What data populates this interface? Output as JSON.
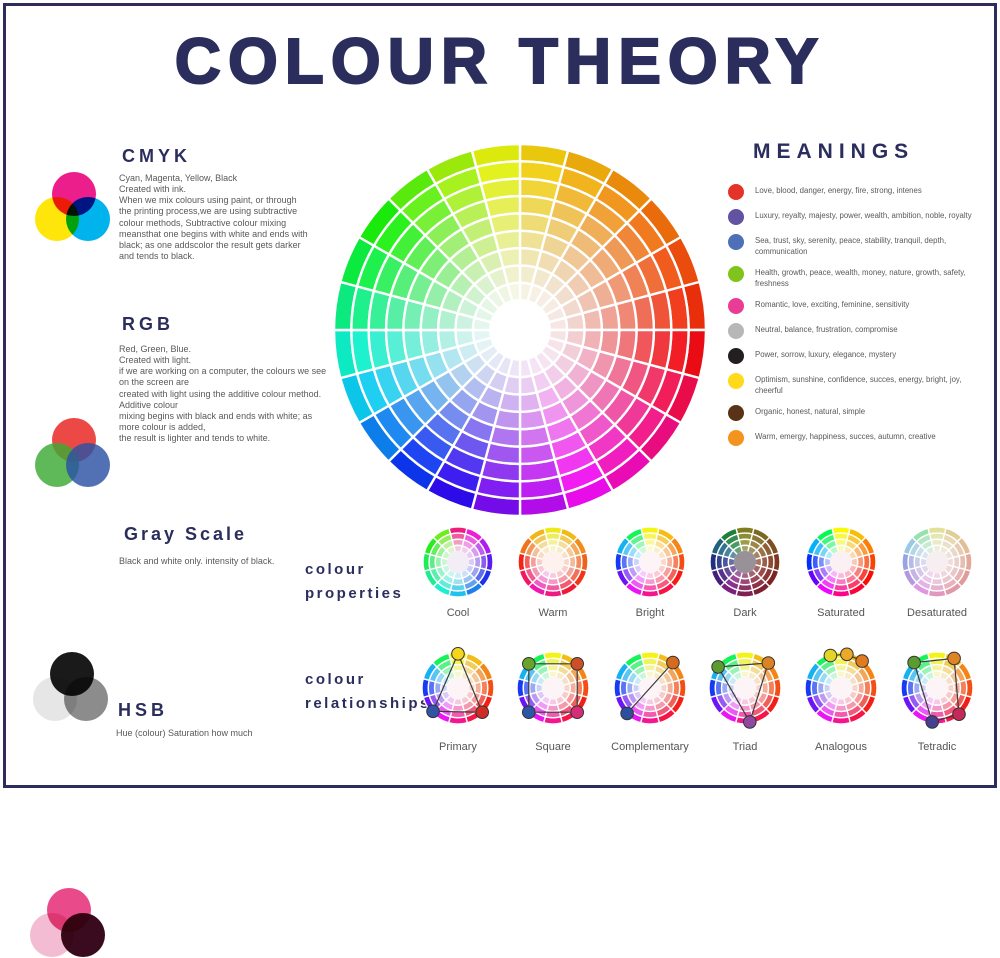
{
  "page": {
    "title": "COLOUR THEORY",
    "accent": "#2b2e5d",
    "background": "#ffffff"
  },
  "sections": {
    "cmyk": {
      "heading": "CMYK",
      "body": "Cyan, Magenta, Yellow, Black\nCreated with ink.\nWhen we mix colours using paint, or through\nthe printing process,we are using subtractive\ncolour methods, Subtractive colour mixing\nmeansthat one begins with white and ends with\nblack; as one addscolor the result gets darker\nand tends to black.",
      "icon_colors": [
        "#ec1e8c",
        "#ffe60a",
        "#00b3ec"
      ]
    },
    "rgb": {
      "heading": "RGB",
      "body": "Red, Green, Blue.\nCreated with light.\nif we are working on a computer, the colours we see\non the screen are\ncreated with light using the additive colour method.\nAdditive colour\nmixing begins with black and ends with white; as\nmore colour is added,\nthe result is lighter and tends to white.",
      "icon_colors": [
        "#e8211d",
        "#3daa35",
        "#2b52a3"
      ]
    },
    "gray": {
      "heading": "Gray Scale",
      "body": "Black and white only. intensity of black.",
      "icon_colors": [
        "#1a1a1a",
        "#e6e6e6",
        "#8c8c8c"
      ]
    },
    "hsb": {
      "heading": "HSB",
      "body": "Hue (colour) Saturation how much",
      "icon_colors": [
        "#e84a8a",
        "#f3bcd3",
        "#3a0a1e"
      ]
    }
  },
  "meanings": {
    "heading": "MEANINGS",
    "items": [
      {
        "color": "#e6332a",
        "text": "Love, blood, danger, energy, fire, strong, intenes"
      },
      {
        "color": "#6152a2",
        "text": "Luxury, reyalty, majesty, power, wealth, ambition, noble, royalty"
      },
      {
        "color": "#4d70b8",
        "text": "Sea, trust, sky, serenity, peace, stability, tranquil, depth, communication"
      },
      {
        "color": "#7fc31c",
        "text": "Health, growth, peace, wealth, money, nature, growth, safety, freshness"
      },
      {
        "color": "#ea3c96",
        "text": "Romantic, love, exciting, feminine, sensitivity"
      },
      {
        "color": "#b7b7b7",
        "text": "Neutral, balance, frustration, compromise"
      },
      {
        "color": "#231f20",
        "text": "Power, sorrow, luxury, elegance, mystery"
      },
      {
        "color": "#ffd91a",
        "text": "Optimism, sunshine, confidence, succes, energy, bright, joy, cheerful"
      },
      {
        "color": "#5a3217",
        "text": "Organic, honest, natural, simple"
      },
      {
        "color": "#f3941e",
        "text": "Warm, emergy, happiness, succes, autumn, creative"
      }
    ]
  },
  "main_wheel": {
    "segments": 24,
    "rings": 9,
    "hole": 0.16,
    "hueStops": [
      [
        0,
        55
      ],
      [
        90,
        5
      ],
      [
        180,
        -82
      ],
      [
        270,
        -200
      ],
      [
        360,
        -305
      ]
    ],
    "sat": [
      90,
      88,
      86,
      83,
      79,
      74,
      67,
      59,
      50
    ],
    "light": [
      48,
      53,
      58,
      64,
      70,
      76,
      82,
      88,
      93
    ]
  },
  "properties": {
    "label1": "colour",
    "label2": "properties",
    "wheels": [
      {
        "label": "Cool",
        "hues": [
          332,
          306,
          282,
          258,
          234,
          212,
          192,
          172,
          154,
          136,
          117,
          97
        ],
        "sat": [
          85,
          80,
          75,
          70
        ],
        "light": [
          52,
          65,
          78,
          88
        ],
        "centerFill": "#f3eef6"
      },
      {
        "label": "Warm",
        "hues": [
          58,
          45,
          32,
          20,
          8,
          352,
          331,
          318,
          340,
          3,
          25,
          44
        ],
        "sat": [
          88,
          84,
          80,
          75
        ],
        "light": [
          52,
          65,
          78,
          88
        ],
        "centerFill": "#fdf2ee"
      },
      {
        "label": "Bright",
        "hues": [
          60,
          45,
          30,
          15,
          2,
          347,
          327,
          297,
          263,
          230,
          198,
          138
        ],
        "sat": [
          92,
          90,
          88,
          85
        ],
        "light": [
          52,
          66,
          79,
          89
        ],
        "centerFill": "#fdf4f7"
      },
      {
        "label": "Dark",
        "hues": [
          60,
          45,
          30,
          15,
          2,
          347,
          327,
          297,
          263,
          230,
          198,
          138
        ],
        "sat": [
          60,
          46,
          36,
          26
        ],
        "light": [
          31,
          38,
          45,
          52
        ],
        "centerFill": "#989298"
      },
      {
        "label": "Saturated",
        "hues": [
          60,
          45,
          30,
          15,
          2,
          347,
          327,
          297,
          263,
          230,
          198,
          138
        ],
        "sat": [
          96,
          94,
          92,
          90
        ],
        "light": [
          50,
          61,
          73,
          85
        ],
        "centerFill": "#fbf0f4"
      },
      {
        "label": "Desaturated",
        "hues": [
          60,
          45,
          30,
          15,
          2,
          347,
          327,
          297,
          263,
          230,
          198,
          138
        ],
        "sat": [
          55,
          50,
          45,
          40
        ],
        "light": [
          74,
          80,
          85,
          89
        ],
        "centerFill": "#f7eef2"
      }
    ]
  },
  "relationships": {
    "label1": "colour",
    "label2": "relationships",
    "wheels": [
      {
        "label": "Primary",
        "hues": [
          60,
          45,
          30,
          15,
          2,
          347,
          327,
          297,
          263,
          230,
          198,
          138
        ],
        "sat": [
          90,
          85,
          80,
          75
        ],
        "light": [
          52,
          65,
          78,
          88
        ],
        "centerFill": "#fdf4f7",
        "connect": "polygon",
        "markers": [
          {
            "a": 0,
            "c": "#f6d51f"
          },
          {
            "a": 135,
            "c": "#d02c26"
          },
          {
            "a": 227,
            "c": "#2f55a4"
          }
        ]
      },
      {
        "label": "Square",
        "hues": [
          60,
          45,
          30,
          15,
          2,
          347,
          327,
          297,
          263,
          230,
          198,
          138
        ],
        "sat": [
          90,
          85,
          80,
          75
        ],
        "light": [
          52,
          65,
          78,
          88
        ],
        "centerFill": "#fdf4f7",
        "connect": "polygon",
        "markers": [
          {
            "a": 45,
            "c": "#cd4f27"
          },
          {
            "a": 135,
            "c": "#d62d78"
          },
          {
            "a": 225,
            "c": "#2d56a5"
          },
          {
            "a": 315,
            "c": "#6aa32c"
          }
        ]
      },
      {
        "label": "Complementary",
        "hues": [
          60,
          45,
          30,
          15,
          2,
          347,
          327,
          297,
          263,
          230,
          198,
          138
        ],
        "sat": [
          90,
          85,
          80,
          75
        ],
        "light": [
          52,
          65,
          78,
          88
        ],
        "centerFill": "#fdf4f7",
        "connect": "polyline",
        "markers": [
          {
            "a": 42,
            "c": "#d66a1e"
          },
          {
            "a": 222,
            "c": "#2e4f9e"
          }
        ]
      },
      {
        "label": "Triad",
        "hues": [
          60,
          45,
          30,
          15,
          2,
          347,
          327,
          297,
          263,
          230,
          198,
          138
        ],
        "sat": [
          90,
          85,
          80,
          75
        ],
        "light": [
          52,
          65,
          78,
          88
        ],
        "centerFill": "#fdf4f7",
        "connect": "polygon",
        "markers": [
          {
            "a": 43,
            "c": "#db8324"
          },
          {
            "a": 172,
            "c": "#8e4a9e"
          },
          {
            "a": 308,
            "c": "#5b9b30"
          }
        ]
      },
      {
        "label": "Analogous",
        "hues": [
          60,
          45,
          30,
          15,
          2,
          347,
          327,
          297,
          263,
          230,
          198,
          138
        ],
        "sat": [
          90,
          85,
          80,
          75
        ],
        "light": [
          52,
          65,
          78,
          88
        ],
        "centerFill": "#fdf4f7",
        "connect": "polyline",
        "markers": [
          {
            "a": 342,
            "c": "#e5d428"
          },
          {
            "a": 10,
            "c": "#eca929"
          },
          {
            "a": 38,
            "c": "#e07c1f"
          }
        ]
      },
      {
        "label": "Tetradic",
        "hues": [
          60,
          45,
          30,
          15,
          2,
          347,
          327,
          297,
          263,
          230,
          198,
          138
        ],
        "sat": [
          90,
          85,
          80,
          75
        ],
        "light": [
          52,
          65,
          78,
          88
        ],
        "centerFill": "#fdf4f7",
        "connect": "polygon",
        "markers": [
          {
            "a": 318,
            "c": "#5b9b30"
          },
          {
            "a": 30,
            "c": "#de8426"
          },
          {
            "a": 140,
            "c": "#c5295a"
          },
          {
            "a": 188,
            "c": "#45408f"
          }
        ]
      }
    ]
  }
}
